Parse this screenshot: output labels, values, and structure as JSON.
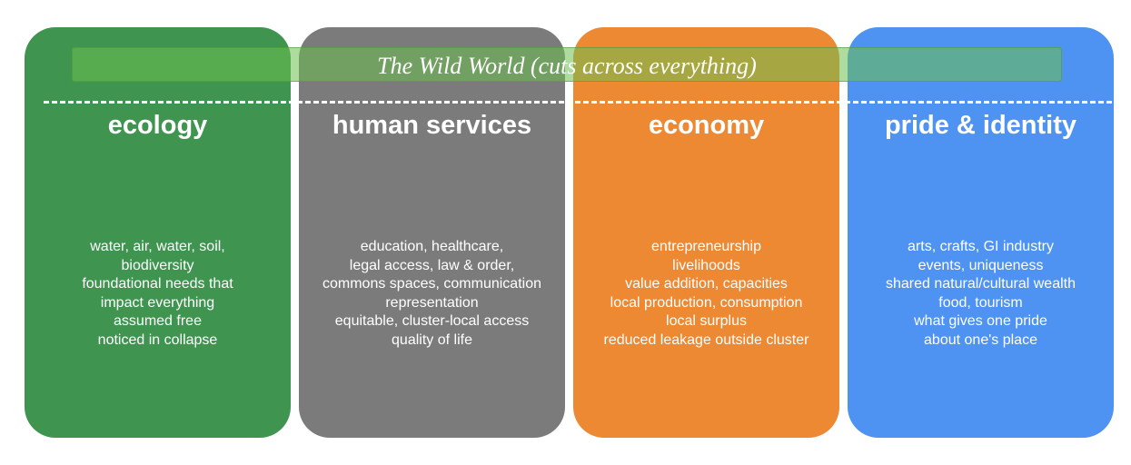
{
  "banner": {
    "text": "The Wild World (cuts across everything)",
    "color": "#6cc04e"
  },
  "pillars": [
    {
      "title": "ecology",
      "color": "#3f9450",
      "lines": [
        "water, air, water, soil,",
        "biodiversity",
        "foundational needs that",
        "impact everything",
        "assumed free",
        "noticed in collapse"
      ]
    },
    {
      "title": "human services",
      "color": "#7b7b7b",
      "lines": [
        "education, healthcare,",
        "legal access, law & order,",
        "commons spaces, communication",
        "representation",
        "equitable, cluster-local access",
        "quality of life"
      ]
    },
    {
      "title": "economy",
      "color": "#ed8833",
      "lines": [
        "entrepreneurship",
        "livelihoods",
        "value addition, capacities",
        "local production, consumption",
        "local surplus",
        "reduced leakage outside cluster"
      ]
    },
    {
      "title": "pride & identity",
      "color": "#4e93f2",
      "lines": [
        "arts, crafts, GI industry",
        "events, uniqueness",
        "shared natural/cultural wealth",
        "food, tourism",
        "what gives one pride",
        "about one's place"
      ]
    }
  ]
}
